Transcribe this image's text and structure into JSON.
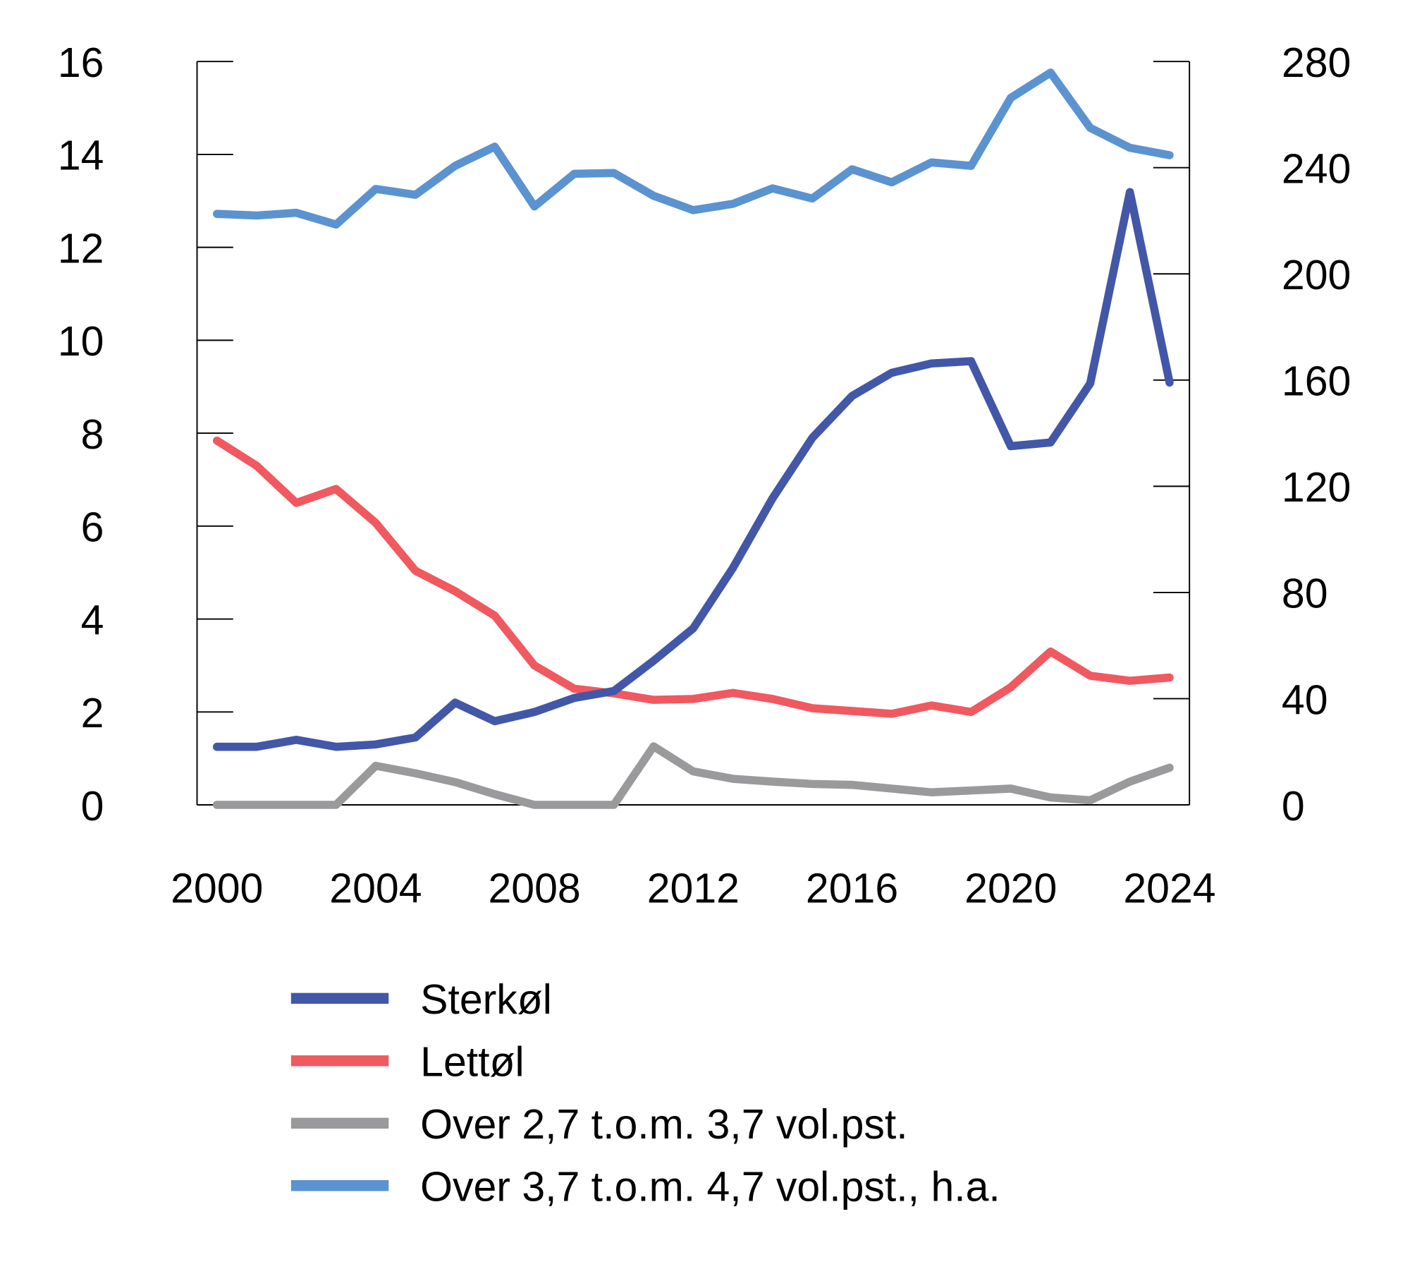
{
  "chart_data": {
    "type": "line",
    "title": "",
    "xlabel": "",
    "ylabel": "",
    "x": [
      2000,
      2001,
      2002,
      2003,
      2004,
      2005,
      2006,
      2007,
      2008,
      2009,
      2010,
      2011,
      2012,
      2013,
      2014,
      2015,
      2016,
      2017,
      2018,
      2019,
      2020,
      2021,
      2022,
      2023,
      2024
    ],
    "x_ticks": [
      "2000",
      "2004",
      "2008",
      "2012",
      "2016",
      "2020",
      "2024"
    ],
    "x_tick_values": [
      2000,
      2004,
      2008,
      2012,
      2016,
      2020,
      2024
    ],
    "ylim_left": [
      0,
      16
    ],
    "y_ticks_left": [
      "0",
      "2",
      "4",
      "6",
      "8",
      "10",
      "12",
      "14",
      "16"
    ],
    "ylim_right": [
      0,
      280
    ],
    "y_ticks_right": [
      "0",
      "40",
      "80",
      "120",
      "160",
      "200",
      "240",
      "280"
    ],
    "grid": false,
    "legend_position": "bottom",
    "series": [
      {
        "name": "Sterkøl",
        "axis": "left",
        "color": "#4257a8",
        "values": [
          1.25,
          1.25,
          1.4,
          1.25,
          1.3,
          1.45,
          2.2,
          1.8,
          2.0,
          2.3,
          2.45,
          3.1,
          3.8,
          5.1,
          6.6,
          7.9,
          8.8,
          9.3,
          9.5,
          9.55,
          7.72,
          7.8,
          9.07,
          13.19,
          9.09
        ]
      },
      {
        "name": "Lettøl",
        "axis": "left",
        "color": "#f0595f",
        "values": [
          7.84,
          7.3,
          6.5,
          6.8,
          6.07,
          5.04,
          4.6,
          4.07,
          3.0,
          2.5,
          2.4,
          2.26,
          2.28,
          2.41,
          2.28,
          2.08,
          2.02,
          1.96,
          2.14,
          2.0,
          2.53,
          3.3,
          2.78,
          2.67,
          2.74
        ]
      },
      {
        "name": "Over 2,7 t.o.m. 3,7 vol.pst.",
        "axis": "left",
        "color": "#9a9a9c",
        "values": [
          0,
          0,
          0,
          0,
          0.84,
          0.68,
          0.49,
          0.23,
          0,
          0,
          0,
          1.26,
          0.72,
          0.56,
          0.5,
          0.45,
          0.43,
          0.35,
          0.27,
          0.31,
          0.35,
          0.16,
          0.1,
          0.5,
          0.8
        ]
      },
      {
        "name": "Over 3,7 t.o.m. 4,7 vol.pst., h.a.",
        "axis": "right",
        "color": "#5b93d0",
        "values": [
          222.6,
          222,
          223,
          218.6,
          232,
          229.8,
          240.7,
          247.9,
          225.4,
          237.7,
          238,
          229.4,
          224,
          226.4,
          232.2,
          228.4,
          239.4,
          234.5,
          242,
          240.7,
          266.3,
          275.8,
          255,
          247.5,
          244.7
        ]
      }
    ]
  }
}
